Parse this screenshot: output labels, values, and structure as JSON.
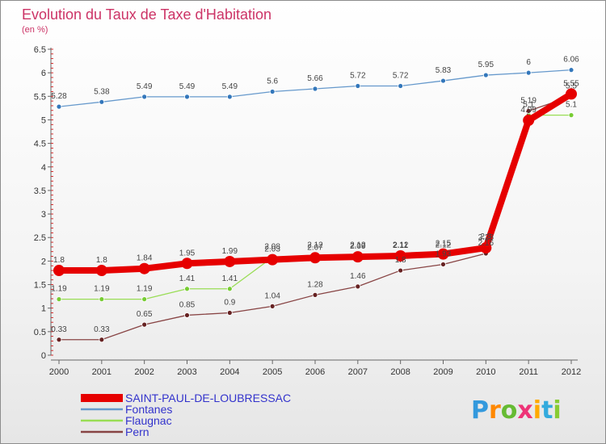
{
  "title": "Evolution du Taux de Taxe d'Habitation",
  "subtitle": "(en %)",
  "logo": "Proxiti",
  "chart_data": {
    "type": "line",
    "title": "Evolution du Taux de Taxe d'Habitation",
    "subtitle": "(en %)",
    "xlabel": "",
    "ylabel": "",
    "ylim": [
      0,
      6.5
    ],
    "yticks": [
      "0",
      "0.5",
      "1",
      "1.5",
      "2",
      "2.5",
      "3",
      "3.5",
      "4",
      "4.5",
      "5",
      "5.5",
      "6",
      "6.5"
    ],
    "categories": [
      "2000",
      "2001",
      "2002",
      "2003",
      "2004",
      "2005",
      "2006",
      "2007",
      "2008",
      "2009",
      "2010",
      "2011",
      "2012"
    ],
    "grid": false,
    "legend_position": "bottom-left",
    "series": [
      {
        "name": "SAINT-PAUL-DE-LOUBRESSAC",
        "color": "#e60000",
        "point_color": "#e60000",
        "values": [
          1.8,
          1.8,
          1.84,
          1.95,
          1.99,
          2.03,
          2.07,
          2.09,
          2.11,
          2.15,
          2.28,
          4.99,
          5.55
        ],
        "labels": [
          "1.8",
          "1.8",
          "1.84",
          "1.95",
          "1.99",
          "2.03",
          "2.07",
          "2.09",
          "2.11",
          "2.15",
          "2.28",
          "4.99",
          "5.55"
        ]
      },
      {
        "name": "Fontanes",
        "color": "#6699cc",
        "point_color": "#3377bb",
        "values": [
          5.28,
          5.38,
          5.49,
          5.49,
          5.49,
          5.6,
          5.66,
          5.72,
          5.72,
          5.83,
          5.95,
          6,
          6.06
        ],
        "labels": [
          "5.28",
          "5.38",
          "5.49",
          "5.49",
          "5.49",
          "5.6",
          "5.66",
          "5.72",
          "5.72",
          "5.83",
          "5.95",
          "6",
          "6.06"
        ]
      },
      {
        "name": "Flaugnac",
        "color": "#99dd55",
        "point_color": "#77cc33",
        "values": [
          1.19,
          1.19,
          1.19,
          1.41,
          1.41,
          2.08,
          2.12,
          2.12,
          2.12,
          2.12,
          2.3,
          5.1,
          5.1
        ],
        "labels": [
          "1.19",
          "1.19",
          "1.19",
          "1.41",
          "1.41",
          "2.08",
          "2.12",
          "2.12",
          "2.12",
          "2.12",
          "2.3",
          "5.1",
          "5.1"
        ]
      },
      {
        "name": "Pern",
        "color": "#884444",
        "point_color": "#662222",
        "values": [
          0.33,
          0.33,
          0.65,
          0.85,
          0.9,
          1.04,
          1.28,
          1.46,
          1.8,
          1.93,
          2.16,
          5.19,
          5.5
        ],
        "labels": [
          "0.33",
          "0.33",
          "0.65",
          "0.85",
          "0.9",
          "1.04",
          "1.28",
          "1.46",
          "1.8",
          "1.93",
          "2.16",
          "5.19",
          "5.5"
        ]
      }
    ]
  }
}
